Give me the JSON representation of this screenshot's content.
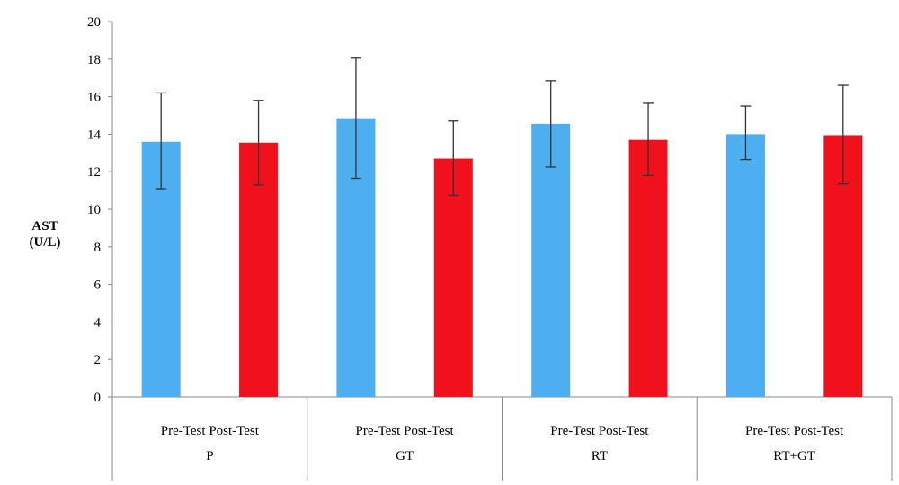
{
  "chart_data": {
    "type": "bar",
    "ylabel": "AST",
    "ylabel_unit": "(U/L)",
    "ylim": [
      0,
      20
    ],
    "yticks": [
      0,
      2,
      4,
      6,
      8,
      10,
      12,
      14,
      16,
      18,
      20
    ],
    "grid": false,
    "groups": [
      {
        "group": "P",
        "bars": [
          {
            "label": "Pre-Test",
            "value": 13.6,
            "err_low": 11.1,
            "err_high": 16.2,
            "color": "#4DAEF0"
          },
          {
            "label": "Post-Test",
            "value": 13.55,
            "err_low": 11.3,
            "err_high": 15.8,
            "color": "#F0111D"
          }
        ]
      },
      {
        "group": "GT",
        "bars": [
          {
            "label": "Pre-Test",
            "value": 14.85,
            "err_low": 11.65,
            "err_high": 18.05,
            "color": "#4DAEF0"
          },
          {
            "label": "Post-Test",
            "value": 12.7,
            "err_low": 10.75,
            "err_high": 14.7,
            "color": "#F0111D"
          }
        ]
      },
      {
        "group": "RT",
        "bars": [
          {
            "label": "Pre-Test",
            "value": 14.55,
            "err_low": 12.25,
            "err_high": 16.85,
            "color": "#4DAEF0"
          },
          {
            "label": "Post-Test",
            "value": 13.7,
            "err_low": 11.8,
            "err_high": 15.65,
            "color": "#F0111D"
          }
        ]
      },
      {
        "group": "RT+GT",
        "bars": [
          {
            "label": "Pre-Test",
            "value": 14.0,
            "err_low": 12.65,
            "err_high": 15.5,
            "color": "#4DAEF0"
          },
          {
            "label": "Post-Test",
            "value": 13.95,
            "err_low": 11.35,
            "err_high": 16.6,
            "color": "#F0111D"
          }
        ]
      }
    ]
  }
}
